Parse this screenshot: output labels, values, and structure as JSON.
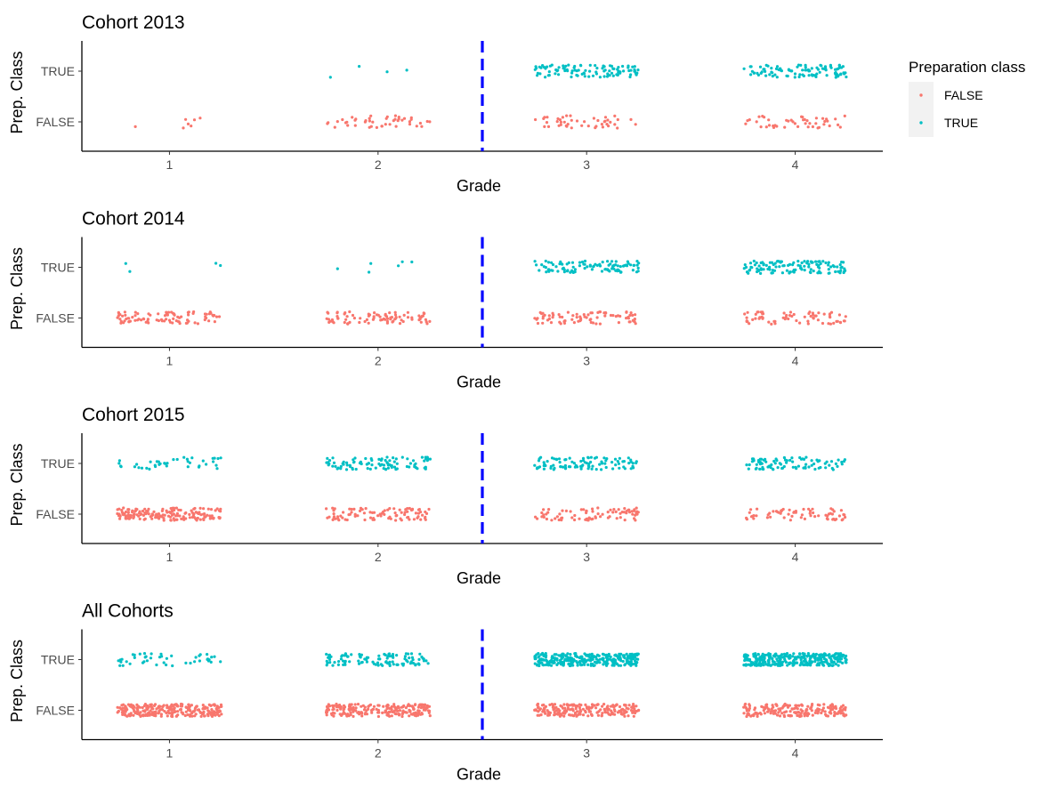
{
  "chart_data": [
    {
      "type": "scatter",
      "title": "Cohort 2013",
      "xlabel": "Grade",
      "ylabel": "Prep. Class",
      "x_ticks": [
        "1",
        "2",
        "3",
        "4"
      ],
      "y_ticks": [
        "FALSE",
        "TRUE"
      ],
      "xlim": [
        0.58,
        4.42
      ],
      "cutoff_line": {
        "x": 2.5,
        "style": "dashed",
        "color": "#0000ff"
      },
      "points_by_grade": {
        "FALSE": [
          7,
          45,
          45,
          45
        ],
        "TRUE": [
          0,
          4,
          100,
          100
        ]
      }
    },
    {
      "type": "scatter",
      "title": "Cohort 2014",
      "xlabel": "Grade",
      "ylabel": "Prep. Class",
      "x_ticks": [
        "1",
        "2",
        "3",
        "4"
      ],
      "y_ticks": [
        "FALSE",
        "TRUE"
      ],
      "xlim": [
        0.58,
        4.42
      ],
      "cutoff_line": {
        "x": 2.5,
        "style": "dashed",
        "color": "#0000ff"
      },
      "points_by_grade": {
        "FALSE": [
          90,
          85,
          80,
          70
        ],
        "TRUE": [
          4,
          6,
          100,
          120
        ]
      }
    },
    {
      "type": "scatter",
      "title": "Cohort 2015",
      "xlabel": "Grade",
      "ylabel": "Prep. Class",
      "x_ticks": [
        "1",
        "2",
        "3",
        "4"
      ],
      "y_ticks": [
        "FALSE",
        "TRUE"
      ],
      "xlim": [
        0.58,
        4.42
      ],
      "cutoff_line": {
        "x": 2.5,
        "style": "dashed",
        "color": "#0000ff"
      },
      "points_by_grade": {
        "FALSE": [
          170,
          90,
          80,
          65
        ],
        "TRUE": [
          40,
          95,
          95,
          85
        ]
      }
    },
    {
      "type": "scatter",
      "title": "All Cohorts",
      "xlabel": "Grade",
      "ylabel": "Prep. Class",
      "x_ticks": [
        "1",
        "2",
        "3",
        "4"
      ],
      "y_ticks": [
        "FALSE",
        "TRUE"
      ],
      "xlim": [
        0.58,
        4.42
      ],
      "cutoff_line": {
        "x": 2.5,
        "style": "dashed",
        "color": "#0000ff"
      },
      "points_by_grade": {
        "FALSE": [
          270,
          220,
          210,
          185
        ],
        "TRUE": [
          45,
          105,
          300,
          310
        ]
      }
    }
  ],
  "legend": {
    "title": "Preparation class",
    "items": [
      {
        "label": "FALSE",
        "color": "#F8766D"
      },
      {
        "label": "TRUE",
        "color": "#00BFC4"
      }
    ]
  },
  "colors": {
    "false_series": "#F8766D",
    "true_series": "#00BFC4",
    "cutoff": "#0000ff"
  }
}
